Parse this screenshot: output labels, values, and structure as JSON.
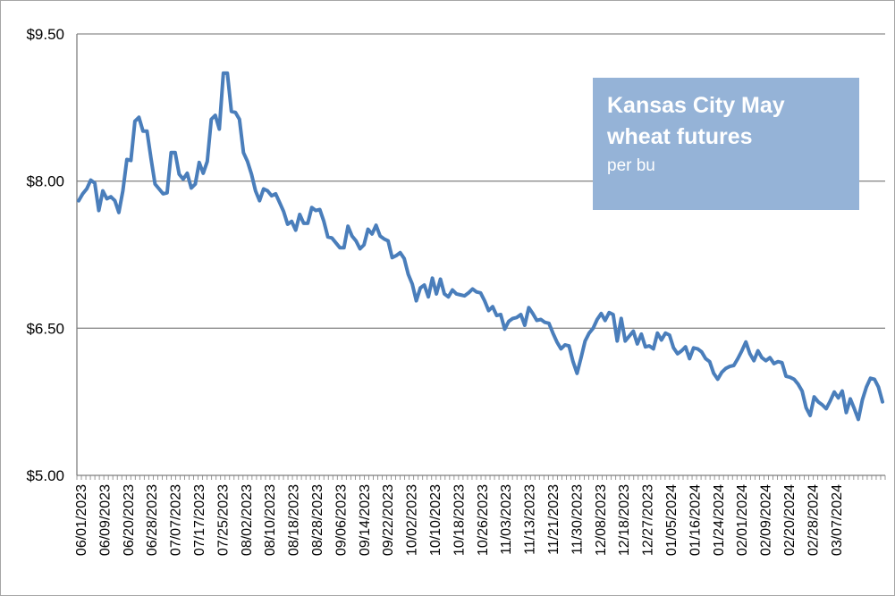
{
  "chart_data": {
    "type": "line",
    "title": "Kansas City May wheat futures",
    "subtitle": "per bu",
    "xlabel": "",
    "ylabel": "",
    "ylim": [
      5.0,
      9.5
    ],
    "yticks": [
      5.0,
      6.5,
      8.0,
      9.5
    ],
    "ytick_labels": [
      "$5.00",
      "$6.50",
      "$8.00",
      "$9.50"
    ],
    "xtick_labels": [
      "06/01/2023",
      "06/09/2023",
      "06/20/2023",
      "06/28/2023",
      "07/07/2023",
      "07/17/2023",
      "07/25/2023",
      "08/02/2023",
      "08/10/2023",
      "08/18/2023",
      "08/28/2023",
      "09/06/2023",
      "09/14/2023",
      "09/22/2023",
      "10/02/2023",
      "10/10/2023",
      "10/18/2023",
      "10/26/2023",
      "11/03/2023",
      "11/13/2023",
      "11/21/2023",
      "11/30/2023",
      "12/08/2023",
      "12/18/2023",
      "12/27/2023",
      "01/05/2024",
      "01/16/2024",
      "01/24/2024",
      "02/01/2024",
      "02/09/2024",
      "02/20/2024",
      "02/28/2024",
      "03/07/2024"
    ],
    "grid": true,
    "legend": "top-right",
    "series": [
      {
        "name": "Kansas City May wheat futures",
        "color": "#4a7ebb",
        "values": [
          7.8,
          7.87,
          7.92,
          8.01,
          7.98,
          7.7,
          7.9,
          7.82,
          7.84,
          7.8,
          7.68,
          7.9,
          8.22,
          8.21,
          8.61,
          8.65,
          8.51,
          8.51,
          8.23,
          7.97,
          7.92,
          7.87,
          7.88,
          8.29,
          8.29,
          8.07,
          8.02,
          8.08,
          7.93,
          7.97,
          8.19,
          8.08,
          8.2,
          8.63,
          8.67,
          8.53,
          9.1,
          9.1,
          8.71,
          8.7,
          8.63,
          8.29,
          8.2,
          8.07,
          7.9,
          7.8,
          7.92,
          7.9,
          7.85,
          7.87,
          7.78,
          7.69,
          7.56,
          7.59,
          7.5,
          7.66,
          7.57,
          7.57,
          7.73,
          7.7,
          7.71,
          7.59,
          7.43,
          7.42,
          7.37,
          7.32,
          7.32,
          7.54,
          7.44,
          7.39,
          7.31,
          7.35,
          7.51,
          7.46,
          7.55,
          7.44,
          7.41,
          7.39,
          7.22,
          7.24,
          7.27,
          7.21,
          7.05,
          6.95,
          6.78,
          6.91,
          6.94,
          6.82,
          7.01,
          6.85,
          7.0,
          6.85,
          6.82,
          6.89,
          6.85,
          6.84,
          6.83,
          6.86,
          6.9,
          6.87,
          6.86,
          6.78,
          6.68,
          6.72,
          6.63,
          6.64,
          6.49,
          6.57,
          6.6,
          6.61,
          6.64,
          6.53,
          6.71,
          6.65,
          6.58,
          6.59,
          6.56,
          6.55,
          6.45,
          6.36,
          6.29,
          6.33,
          6.32,
          6.16,
          6.04,
          6.2,
          6.37,
          6.45,
          6.5,
          6.59,
          6.65,
          6.58,
          6.66,
          6.64,
          6.37,
          6.6,
          6.37,
          6.42,
          6.47,
          6.34,
          6.44,
          6.31,
          6.32,
          6.29,
          6.45,
          6.38,
          6.45,
          6.43,
          6.3,
          6.24,
          6.27,
          6.31,
          6.19,
          6.3,
          6.29,
          6.26,
          6.19,
          6.16,
          6.04,
          5.98,
          6.05,
          6.09,
          6.11,
          6.12,
          6.19,
          6.27,
          6.36,
          6.24,
          6.17,
          6.27,
          6.2,
          6.17,
          6.2,
          6.14,
          6.16,
          6.15,
          6.01,
          6.0,
          5.98,
          5.93,
          5.86,
          5.69,
          5.61,
          5.8,
          5.75,
          5.72,
          5.68,
          5.76,
          5.85,
          5.79,
          5.86,
          5.64,
          5.78,
          5.68,
          5.57,
          5.77,
          5.9,
          5.99,
          5.98,
          5.9,
          5.75
        ]
      }
    ]
  }
}
